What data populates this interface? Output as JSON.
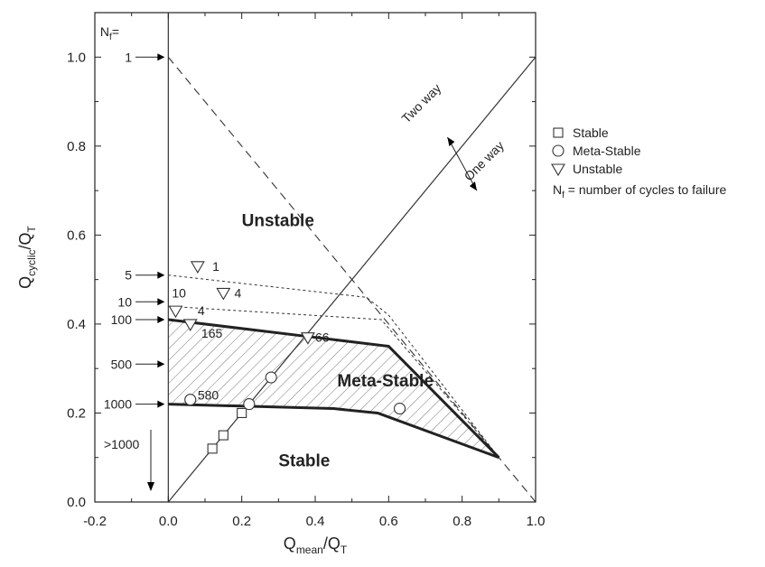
{
  "chart_data": {
    "type": "line",
    "title": "",
    "xlabel": {
      "main": "Q",
      "sub": "mean",
      "suffix": "/Q",
      "sub2": "T"
    },
    "ylabel": {
      "main": "Q",
      "sub": "cyclic",
      "suffix": "/Q",
      "sub2": "T"
    },
    "xlim": [
      -0.2,
      1.0
    ],
    "ylim": [
      0.0,
      1.1
    ],
    "x_ticks": [
      "-0.2",
      "0.0",
      "0.2",
      "0.4",
      "0.6",
      "0.8",
      "1.0"
    ],
    "y_ticks": [
      "0.0",
      "0.2",
      "0.4",
      "0.6",
      "0.8",
      "1.0"
    ],
    "grid": false,
    "legend_position": "right",
    "lines": [
      {
        "name": "vertical axis",
        "style": "solid",
        "points": [
          [
            0.0,
            0.0
          ],
          [
            0.0,
            1.1
          ]
        ]
      },
      {
        "name": "one-way/two-way boundary",
        "style": "solid",
        "points": [
          [
            0.0,
            0.0
          ],
          [
            1.0,
            1.0
          ]
        ]
      },
      {
        "name": "Nf=1",
        "style": "long-dash",
        "points": [
          [
            0.0,
            1.0
          ],
          [
            0.54,
            0.46
          ],
          [
            1.0,
            0.0
          ]
        ]
      },
      {
        "name": "Nf=5",
        "style": "short-dash",
        "points": [
          [
            0.0,
            0.51
          ],
          [
            0.54,
            0.46
          ],
          [
            0.6,
            0.42
          ],
          [
            0.9,
            0.1
          ]
        ]
      },
      {
        "name": "Nf=10",
        "style": "short-dash",
        "points": [
          [
            0.0,
            0.44
          ],
          [
            0.58,
            0.41
          ],
          [
            0.9,
            0.1
          ]
        ]
      },
      {
        "name": "Nf=100",
        "style": "bold",
        "points": [
          [
            0.0,
            0.41
          ],
          [
            0.4,
            0.37
          ],
          [
            0.6,
            0.35
          ],
          [
            0.9,
            0.1
          ]
        ]
      },
      {
        "name": "Nf=1000",
        "style": "bold",
        "points": [
          [
            0.0,
            0.22
          ],
          [
            0.45,
            0.21
          ],
          [
            0.57,
            0.2
          ],
          [
            0.9,
            0.1
          ]
        ]
      }
    ],
    "meta_stable_region": [
      [
        0.0,
        0.41
      ],
      [
        0.4,
        0.37
      ],
      [
        0.6,
        0.35
      ],
      [
        0.9,
        0.1
      ],
      [
        0.57,
        0.2
      ],
      [
        0.45,
        0.21
      ],
      [
        0.0,
        0.22
      ]
    ],
    "points": [
      {
        "category": "Stable",
        "marker": "square",
        "x": 0.12,
        "y": 0.12
      },
      {
        "category": "Stable",
        "marker": "square",
        "x": 0.15,
        "y": 0.15
      },
      {
        "category": "Stable",
        "marker": "square",
        "x": 0.2,
        "y": 0.2
      },
      {
        "category": "Meta-Stable",
        "marker": "circle",
        "x": 0.06,
        "y": 0.23
      },
      {
        "category": "Meta-Stable",
        "marker": "circle",
        "x": 0.22,
        "y": 0.22
      },
      {
        "category": "Meta-Stable",
        "marker": "circle",
        "x": 0.28,
        "y": 0.28
      },
      {
        "category": "Meta-Stable",
        "marker": "circle",
        "x": 0.63,
        "y": 0.21
      },
      {
        "category": "Unstable",
        "marker": "triangle",
        "x": 0.08,
        "y": 0.53
      },
      {
        "category": "Unstable",
        "marker": "triangle",
        "x": 0.15,
        "y": 0.47
      },
      {
        "category": "Unstable",
        "marker": "triangle",
        "x": 0.02,
        "y": 0.43
      },
      {
        "category": "Unstable",
        "marker": "triangle",
        "x": 0.06,
        "y": 0.4
      },
      {
        "category": "Unstable",
        "marker": "triangle",
        "x": 0.38,
        "y": 0.37
      }
    ],
    "point_labels": [
      {
        "text": "1",
        "x": 0.12,
        "y": 0.53
      },
      {
        "text": "4",
        "x": 0.18,
        "y": 0.47
      },
      {
        "text": "10",
        "x": 0.01,
        "y": 0.47
      },
      {
        "text": "4",
        "x": 0.08,
        "y": 0.43
      },
      {
        "text": "165",
        "x": 0.09,
        "y": 0.38
      },
      {
        "text": "66",
        "x": 0.4,
        "y": 0.37
      },
      {
        "text": "580",
        "x": 0.08,
        "y": 0.24
      }
    ],
    "nf_title": {
      "main": "N",
      "sub": "f",
      "suffix": "="
    },
    "nf_labels": [
      {
        "text": "1",
        "y": 1.0
      },
      {
        "text": "5",
        "y": 0.51
      },
      {
        "text": "10",
        "y": 0.45
      },
      {
        "text": "100",
        "y": 0.41
      },
      {
        "text": "500",
        "y": 0.31
      },
      {
        "text": "1000",
        "y": 0.22
      },
      {
        "text": ">1000",
        "y": 0.13
      }
    ],
    "region_labels": [
      {
        "text": "Unstable",
        "x": 0.2,
        "y": 0.62
      },
      {
        "text": "Meta-Stable",
        "x": 0.46,
        "y": 0.26
      },
      {
        "text": "Stable",
        "x": 0.3,
        "y": 0.08
      }
    ],
    "direction_labels": [
      {
        "text": "Two way",
        "x": 0.65,
        "y": 0.85
      },
      {
        "text": "One way",
        "x": 0.82,
        "y": 0.72
      }
    ],
    "legend": {
      "entries": [
        {
          "marker": "square",
          "label": "Stable"
        },
        {
          "marker": "circle",
          "label": "Meta-Stable"
        },
        {
          "marker": "triangle",
          "label": "Unstable"
        }
      ],
      "note": {
        "main": "N",
        "sub": "f",
        "text": " = number of cycles to failure"
      }
    }
  }
}
